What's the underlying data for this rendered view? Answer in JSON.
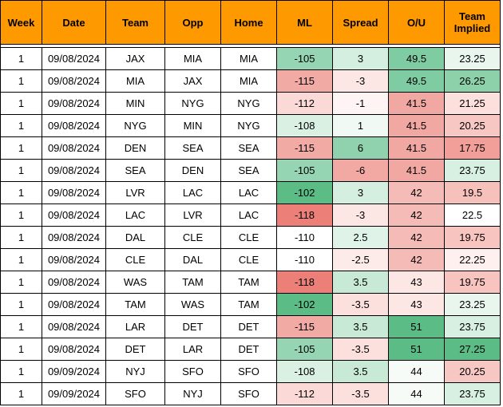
{
  "columns": [
    "Week",
    "Date",
    "Team",
    "Opp",
    "Home",
    "ML",
    "Spread",
    "O/U",
    "Team Implied"
  ],
  "rows": [
    {
      "week": "1",
      "date": "09/08/2024",
      "team": "JAX",
      "opp": "MIA",
      "home": "MIA",
      "ml": "-105",
      "spread": "3",
      "ou": "49.5",
      "implied": "23.25",
      "ml_color": "#96d5b3",
      "spread_color": "#d4eedf",
      "ou_color": "#7fcca2",
      "implied_color": "#e8f6ee"
    },
    {
      "week": "1",
      "date": "09/08/2024",
      "team": "MIA",
      "opp": "JAX",
      "home": "MIA",
      "ml": "-115",
      "spread": "-3",
      "ou": "49.5",
      "implied": "26.25",
      "ml_color": "#f2aaa4",
      "spread_color": "#fde7e5",
      "ou_color": "#7fcca2",
      "implied_color": "#8dd1ab"
    },
    {
      "week": "1",
      "date": "09/08/2024",
      "team": "MIN",
      "opp": "NYG",
      "home": "NYG",
      "ml": "-112",
      "spread": "-1",
      "ou": "41.5",
      "implied": "21.25",
      "ml_color": "#fbd9d6",
      "spread_color": "#fdf4f3",
      "ou_color": "#f2a8a2",
      "implied_color": "#fce0dd"
    },
    {
      "week": "1",
      "date": "09/08/2024",
      "team": "NYG",
      "opp": "MIN",
      "home": "NYG",
      "ml": "-108",
      "spread": "1",
      "ou": "41.5",
      "implied": "20.25",
      "ml_color": "#d9f0e3",
      "spread_color": "#f1f9f4",
      "ou_color": "#f2a8a2",
      "implied_color": "#f7c8c3"
    },
    {
      "week": "1",
      "date": "09/08/2024",
      "team": "DEN",
      "opp": "SEA",
      "home": "SEA",
      "ml": "-115",
      "spread": "6",
      "ou": "41.5",
      "implied": "17.75",
      "ml_color": "#f2aaa4",
      "spread_color": "#8fd2ad",
      "ou_color": "#f2a8a2",
      "implied_color": "#f19f98"
    },
    {
      "week": "1",
      "date": "09/08/2024",
      "team": "SEA",
      "opp": "DEN",
      "home": "SEA",
      "ml": "-105",
      "spread": "-6",
      "ou": "41.5",
      "implied": "23.75",
      "ml_color": "#96d5b3",
      "spread_color": "#f2a9a3",
      "ou_color": "#f2a8a2",
      "implied_color": "#d8f0e2"
    },
    {
      "week": "1",
      "date": "09/08/2024",
      "team": "LVR",
      "opp": "LAC",
      "home": "LAC",
      "ml": "-102",
      "spread": "3",
      "ou": "42",
      "implied": "19.5",
      "ml_color": "#5bbc86",
      "spread_color": "#d4eedf",
      "ou_color": "#f5bbb6",
      "implied_color": "#f6c0bb"
    },
    {
      "week": "1",
      "date": "09/08/2024",
      "team": "LAC",
      "opp": "LVR",
      "home": "LAC",
      "ml": "-118",
      "spread": "-3",
      "ou": "42",
      "implied": "22.5",
      "ml_color": "#ec8078",
      "spread_color": "#fde7e5",
      "ou_color": "#f5bbb6",
      "implied_color": "#ffffff"
    },
    {
      "week": "1",
      "date": "09/08/2024",
      "team": "DAL",
      "opp": "CLE",
      "home": "CLE",
      "ml": "-110",
      "spread": "2.5",
      "ou": "42",
      "implied": "19.75",
      "ml_color": "#ffffff",
      "spread_color": "#e0f3e8",
      "ou_color": "#f5bbb6",
      "implied_color": "#f7c4bf"
    },
    {
      "week": "1",
      "date": "09/08/2024",
      "team": "CLE",
      "opp": "DAL",
      "home": "CLE",
      "ml": "-110",
      "spread": "-2.5",
      "ou": "42",
      "implied": "22.25",
      "ml_color": "#ffffff",
      "spread_color": "#fcebe9",
      "ou_color": "#f5bbb6",
      "implied_color": "#fdf0ee"
    },
    {
      "week": "1",
      "date": "09/08/2024",
      "team": "WAS",
      "opp": "TAM",
      "home": "TAM",
      "ml": "-118",
      "spread": "3.5",
      "ou": "43",
      "implied": "19.75",
      "ml_color": "#ec8078",
      "spread_color": "#c8e9d6",
      "ou_color": "#fde7e5",
      "implied_color": "#f7c4bf"
    },
    {
      "week": "1",
      "date": "09/08/2024",
      "team": "TAM",
      "opp": "WAS",
      "home": "TAM",
      "ml": "-102",
      "spread": "-3.5",
      "ou": "43",
      "implied": "23.25",
      "ml_color": "#5bbc86",
      "spread_color": "#fbe0dd",
      "ou_color": "#fde7e5",
      "implied_color": "#e8f6ee"
    },
    {
      "week": "1",
      "date": "09/08/2024",
      "team": "LAR",
      "opp": "DET",
      "home": "DET",
      "ml": "-115",
      "spread": "3.5",
      "ou": "51",
      "implied": "23.75",
      "ml_color": "#f2aaa4",
      "spread_color": "#c8e9d6",
      "ou_color": "#5bbc86",
      "implied_color": "#d8f0e2"
    },
    {
      "week": "1",
      "date": "09/08/2024",
      "team": "DET",
      "opp": "LAR",
      "home": "DET",
      "ml": "-105",
      "spread": "-3.5",
      "ou": "51",
      "implied": "27.25",
      "ml_color": "#96d5b3",
      "spread_color": "#fbe0dd",
      "ou_color": "#5bbc86",
      "implied_color": "#5bbc86"
    },
    {
      "week": "1",
      "date": "09/09/2024",
      "team": "NYJ",
      "opp": "SFO",
      "home": "SFO",
      "ml": "-108",
      "spread": "3.5",
      "ou": "44",
      "implied": "20.25",
      "ml_color": "#d9f0e3",
      "spread_color": "#c8e9d6",
      "ou_color": "#f6fbf8",
      "implied_color": "#f7c8c3"
    },
    {
      "week": "1",
      "date": "09/09/2024",
      "team": "SFO",
      "opp": "NYJ",
      "home": "SFO",
      "ml": "-112",
      "spread": "-3.5",
      "ou": "44",
      "implied": "23.75",
      "ml_color": "#fbd9d6",
      "spread_color": "#fbe0dd",
      "ou_color": "#f6fbf8",
      "implied_color": "#d8f0e2"
    }
  ]
}
